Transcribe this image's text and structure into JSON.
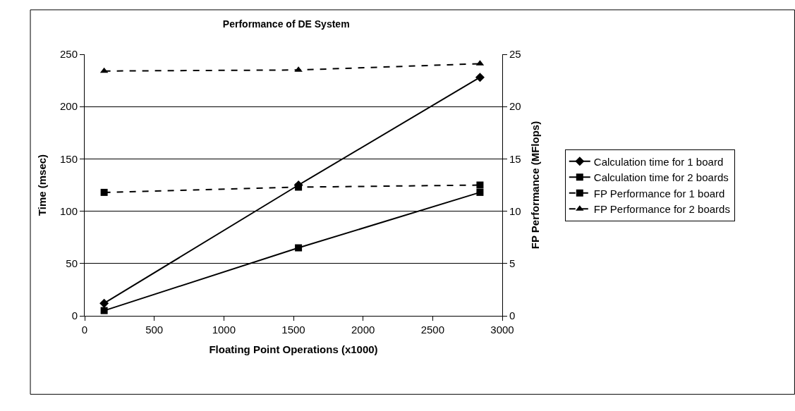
{
  "chart_data": {
    "type": "line",
    "title": "Performance of DE System",
    "xlabel": "Floating Point Operations (x1000)",
    "ylabel": "Time (msec)",
    "y2label": "FP Performance (MFlops)",
    "x": [
      140,
      1536,
      2840
    ],
    "series": [
      {
        "name": "Calculation time for 1 board",
        "color": "#000000",
        "values": [
          12,
          125,
          228
        ],
        "marker": "diamond",
        "line_style": "solid"
      },
      {
        "name": "Calculation time for 2 boards",
        "color": "#000000",
        "values": [
          5,
          65,
          118
        ],
        "marker": "square",
        "line_style": "solid"
      },
      {
        "name": "FP Performance for 1 board",
        "color": "#000000",
        "values": [
          11.8,
          12.3,
          12.5
        ],
        "marker": "square",
        "line_style": "dashed",
        "axis": "y2"
      },
      {
        "name": "FP Performance for 2 boards",
        "color": "#000000",
        "values": [
          23.4,
          23.5,
          24.1
        ],
        "marker": "triangle",
        "line_style": "dashed",
        "axis": "y2"
      }
    ],
    "xlim": [
      0,
      3000
    ],
    "xticks": [
      0,
      500,
      1000,
      1500,
      2000,
      2500,
      3000
    ],
    "ylim": [
      0,
      250
    ],
    "yticks": [
      0,
      50,
      100,
      150,
      200,
      250
    ],
    "y2lim": [
      0,
      25
    ],
    "y2ticks": [
      0,
      5,
      10,
      15,
      20,
      25
    ],
    "grid": "y",
    "legend": "right"
  }
}
